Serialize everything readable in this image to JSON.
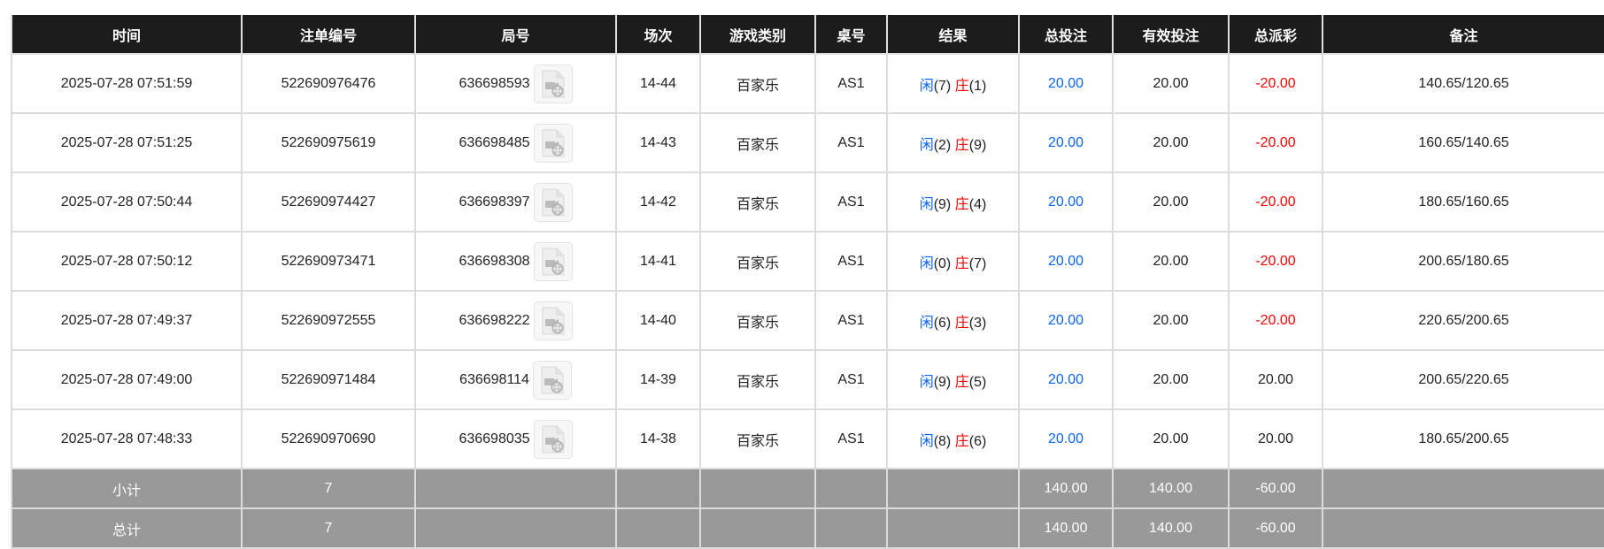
{
  "headers": [
    "时间",
    "注单编号",
    "局号",
    "场次",
    "游戏类别",
    "桌号",
    "结果",
    "总投注",
    "有效投注",
    "总派彩",
    "备注"
  ],
  "colors": {
    "player": "#0a64f5",
    "banker": "#ff0000",
    "negative": "#ff0000",
    "header_bg": "#1c1c1c",
    "summary_bg": "#999999"
  },
  "rows": [
    {
      "time": "2025-07-28 07:51:59",
      "bet_id": "522690976476",
      "round": "636698593",
      "shoe": "14-44",
      "game": "百家乐",
      "table": "AS1",
      "player_label": "闲",
      "player_score": "(7)",
      "banker_label": "庄",
      "banker_score": "(1)",
      "total_bet": "20.00",
      "valid_bet": "20.00",
      "payout": "-20.00",
      "note": "140.65/120.65"
    },
    {
      "time": "2025-07-28 07:51:25",
      "bet_id": "522690975619",
      "round": "636698485",
      "shoe": "14-43",
      "game": "百家乐",
      "table": "AS1",
      "player_label": "闲",
      "player_score": "(2)",
      "banker_label": "庄",
      "banker_score": "(9)",
      "total_bet": "20.00",
      "valid_bet": "20.00",
      "payout": "-20.00",
      "note": "160.65/140.65"
    },
    {
      "time": "2025-07-28 07:50:44",
      "bet_id": "522690974427",
      "round": "636698397",
      "shoe": "14-42",
      "game": "百家乐",
      "table": "AS1",
      "player_label": "闲",
      "player_score": "(9)",
      "banker_label": "庄",
      "banker_score": "(4)",
      "total_bet": "20.00",
      "valid_bet": "20.00",
      "payout": "-20.00",
      "note": "180.65/160.65"
    },
    {
      "time": "2025-07-28 07:50:12",
      "bet_id": "522690973471",
      "round": "636698308",
      "shoe": "14-41",
      "game": "百家乐",
      "table": "AS1",
      "player_label": "闲",
      "player_score": "(0)",
      "banker_label": "庄",
      "banker_score": "(7)",
      "total_bet": "20.00",
      "valid_bet": "20.00",
      "payout": "-20.00",
      "note": "200.65/180.65"
    },
    {
      "time": "2025-07-28 07:49:37",
      "bet_id": "522690972555",
      "round": "636698222",
      "shoe": "14-40",
      "game": "百家乐",
      "table": "AS1",
      "player_label": "闲",
      "player_score": "(6)",
      "banker_label": "庄",
      "banker_score": "(3)",
      "total_bet": "20.00",
      "valid_bet": "20.00",
      "payout": "-20.00",
      "note": "220.65/200.65"
    },
    {
      "time": "2025-07-28 07:49:00",
      "bet_id": "522690971484",
      "round": "636698114",
      "shoe": "14-39",
      "game": "百家乐",
      "table": "AS1",
      "player_label": "闲",
      "player_score": "(9)",
      "banker_label": "庄",
      "banker_score": "(5)",
      "total_bet": "20.00",
      "valid_bet": "20.00",
      "payout": "20.00",
      "note": "200.65/220.65"
    },
    {
      "time": "2025-07-28 07:48:33",
      "bet_id": "522690970690",
      "round": "636698035",
      "shoe": "14-38",
      "game": "百家乐",
      "table": "AS1",
      "player_label": "闲",
      "player_score": "(8)",
      "banker_label": "庄",
      "banker_score": "(6)",
      "total_bet": "20.00",
      "valid_bet": "20.00",
      "payout": "20.00",
      "note": "180.65/200.65"
    }
  ],
  "summary": [
    {
      "label": "小计",
      "count": "7",
      "total_bet": "140.00",
      "valid_bet": "140.00",
      "payout": "-60.00"
    },
    {
      "label": "总计",
      "count": "7",
      "total_bet": "140.00",
      "valid_bet": "140.00",
      "payout": "-60.00"
    }
  ]
}
